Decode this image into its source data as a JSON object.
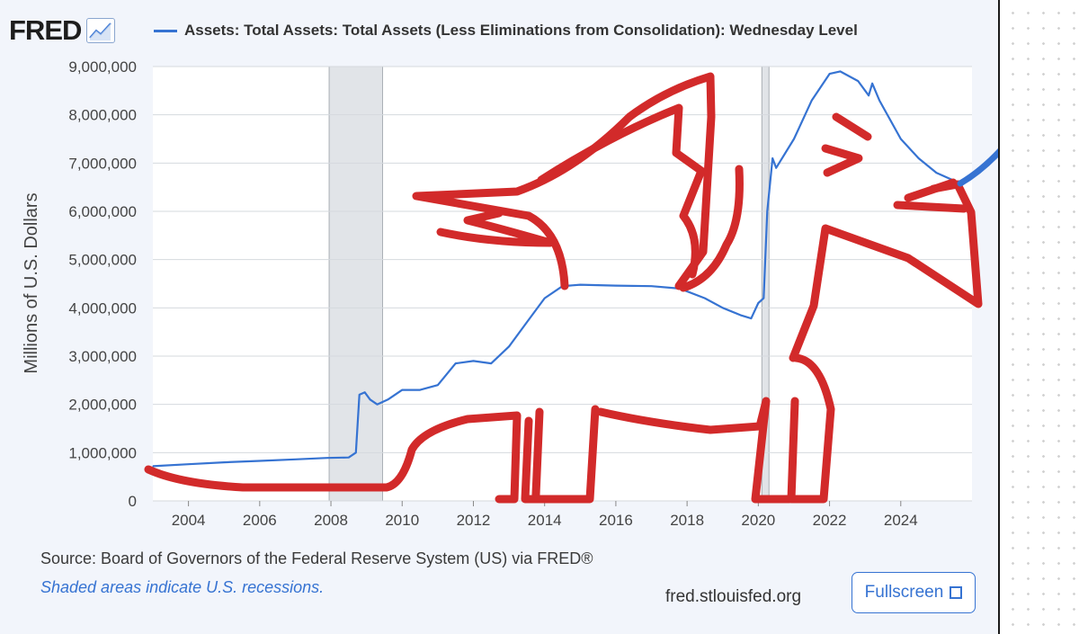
{
  "logo": {
    "text": "FRED"
  },
  "legend": {
    "label": "Assets: Total Assets: Total Assets (Less Eliminations from Consolidation): Wednesday Level",
    "color": "#3673d2"
  },
  "footer": {
    "source": "Source: Board of Governors of the Federal Reserve System (US) via FRED®",
    "note": "Shaded areas indicate U.S. recessions.",
    "site": "fred.stlouisfed.org",
    "fullscreen_label": "Fullscreen"
  },
  "chart_data": {
    "type": "line",
    "title": "Assets: Total Assets: Total Assets (Less Eliminations from Consolidation): Wednesday Level",
    "xlabel": "",
    "ylabel": "Millions of U.S. Dollars",
    "xlim": [
      2003.0,
      2026.0
    ],
    "ylim": [
      0,
      9000000
    ],
    "x_ticks": [
      2004,
      2006,
      2008,
      2010,
      2012,
      2014,
      2016,
      2018,
      2020,
      2022,
      2024
    ],
    "x_tick_labels": [
      "2004",
      "2006",
      "2008",
      "2010",
      "2012",
      "2014",
      "2016",
      "2018",
      "2020",
      "2022",
      "2024"
    ],
    "y_ticks": [
      0,
      1000000,
      2000000,
      3000000,
      4000000,
      5000000,
      6000000,
      7000000,
      8000000,
      9000000
    ],
    "y_tick_labels": [
      "0",
      "1,000,000",
      "2,000,000",
      "3,000,000",
      "4,000,000",
      "5,000,000",
      "6,000,000",
      "7,000,000",
      "8,000,000",
      "9,000,000"
    ],
    "grid": true,
    "recessions": [
      [
        2007.95,
        2009.45
      ],
      [
        2020.1,
        2020.3
      ]
    ],
    "series": [
      {
        "name": "Total Assets (Wednesday Level)",
        "color": "#3673d2",
        "x": [
          2003.0,
          2004.0,
          2005.0,
          2006.0,
          2007.0,
          2007.9,
          2008.5,
          2008.7,
          2008.8,
          2008.95,
          2009.1,
          2009.3,
          2009.6,
          2010.0,
          2010.5,
          2011.0,
          2011.5,
          2012.0,
          2012.5,
          2013.0,
          2013.5,
          2014.0,
          2014.5,
          2015.0,
          2016.0,
          2017.0,
          2017.8,
          2018.5,
          2019.0,
          2019.5,
          2019.8,
          2020.0,
          2020.15,
          2020.25,
          2020.4,
          2020.5,
          2021.0,
          2021.5,
          2022.0,
          2022.3,
          2022.8,
          2023.1,
          2023.2,
          2023.4,
          2024.0,
          2024.5,
          2025.0,
          2025.6
        ],
        "values": [
          720000,
          760000,
          800000,
          830000,
          860000,
          890000,
          900000,
          1000000,
          2200000,
          2250000,
          2100000,
          2000000,
          2100000,
          2300000,
          2300000,
          2400000,
          2850000,
          2900000,
          2850000,
          3200000,
          3700000,
          4200000,
          4450000,
          4480000,
          4460000,
          4450000,
          4400000,
          4200000,
          4000000,
          3850000,
          3780000,
          4100000,
          4200000,
          6000000,
          7100000,
          6900000,
          7500000,
          8300000,
          8850000,
          8900000,
          8700000,
          8400000,
          8650000,
          8300000,
          7500000,
          7100000,
          6800000,
          6600000
        ]
      }
    ]
  }
}
